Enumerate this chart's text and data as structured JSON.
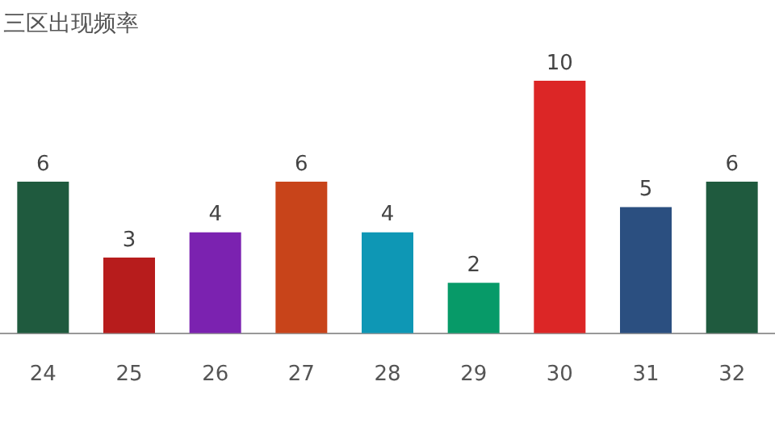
{
  "chart_data": {
    "type": "bar",
    "title": "三区出现频率",
    "categories": [
      "24",
      "25",
      "26",
      "27",
      "28",
      "29",
      "30",
      "31",
      "32"
    ],
    "values": [
      6,
      3,
      4,
      6,
      4,
      2,
      10,
      5,
      6
    ],
    "colors": [
      "#1f5a3e",
      "#b71c1c",
      "#7b22b0",
      "#c8441a",
      "#0e97b5",
      "#079a68",
      "#dc2626",
      "#2b4f80",
      "#1f5a3e"
    ],
    "data_labels": true
  }
}
